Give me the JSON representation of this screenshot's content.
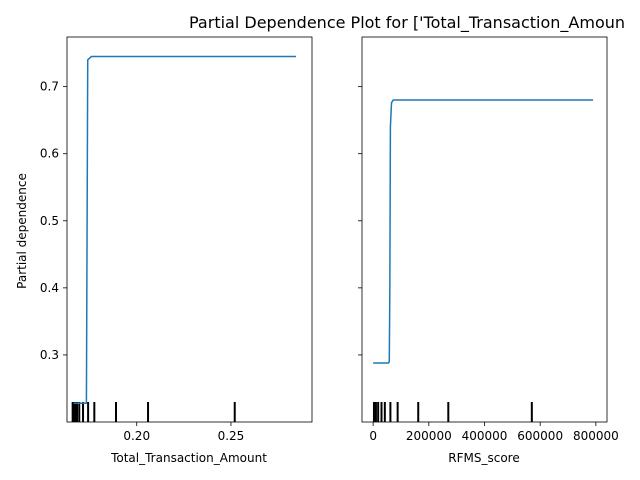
{
  "chart_data": {
    "type": "line",
    "title": "Partial Dependence Plot for ['Total_Transaction_Amoun",
    "ylabel": "Partial dependence",
    "line_color": "#1f77b4",
    "panels": [
      {
        "xlabel": "Total_Transaction_Amount",
        "xlim": [
          0.163,
          0.293
        ],
        "ylim": [
          0.2,
          0.774
        ],
        "x_ticks": [
          0.2,
          0.25
        ],
        "x_tick_labels": [
          "0.20",
          "0.25"
        ],
        "y_ticks": [
          0.3,
          0.4,
          0.5,
          0.6,
          0.7
        ],
        "y_tick_labels": [
          "0.3",
          "0.4",
          "0.5",
          "0.6",
          "0.7"
        ],
        "show_y_tick_labels": true,
        "x": [
          0.1665,
          0.17,
          0.1725,
          0.1733,
          0.174,
          0.176,
          0.2,
          0.25,
          0.2845
        ],
        "y": [
          0.228,
          0.228,
          0.228,
          0.228,
          0.74,
          0.745,
          0.745,
          0.745,
          0.745
        ],
        "rug": [
          0.166,
          0.1668,
          0.1675,
          0.1683,
          0.1695,
          0.1715,
          0.1742,
          0.1775,
          0.189,
          0.206,
          0.252
        ]
      },
      {
        "xlabel": "RFMS_score",
        "xlim": [
          -40000,
          840000
        ],
        "ylim": [
          0.2,
          0.774
        ],
        "x_ticks": [
          0,
          200000,
          400000,
          600000,
          800000
        ],
        "x_tick_labels": [
          "0",
          "200000",
          "400000",
          "600000",
          "800000"
        ],
        "y_ticks": [
          0.3,
          0.4,
          0.5,
          0.6,
          0.7
        ],
        "y_tick_labels": [
          "0.3",
          "0.4",
          "0.5",
          "0.6",
          "0.7"
        ],
        "show_y_tick_labels": false,
        "x": [
          0,
          55000,
          58000,
          60000,
          62000,
          66000,
          72000,
          200000,
          400000,
          600000,
          790000
        ],
        "y": [
          0.288,
          0.288,
          0.29,
          0.4,
          0.64,
          0.676,
          0.68,
          0.68,
          0.68,
          0.68,
          0.68
        ],
        "rug": [
          3000,
          10000,
          18000,
          30000,
          42000,
          62000,
          88000,
          162000,
          270000,
          570000
        ]
      }
    ]
  }
}
